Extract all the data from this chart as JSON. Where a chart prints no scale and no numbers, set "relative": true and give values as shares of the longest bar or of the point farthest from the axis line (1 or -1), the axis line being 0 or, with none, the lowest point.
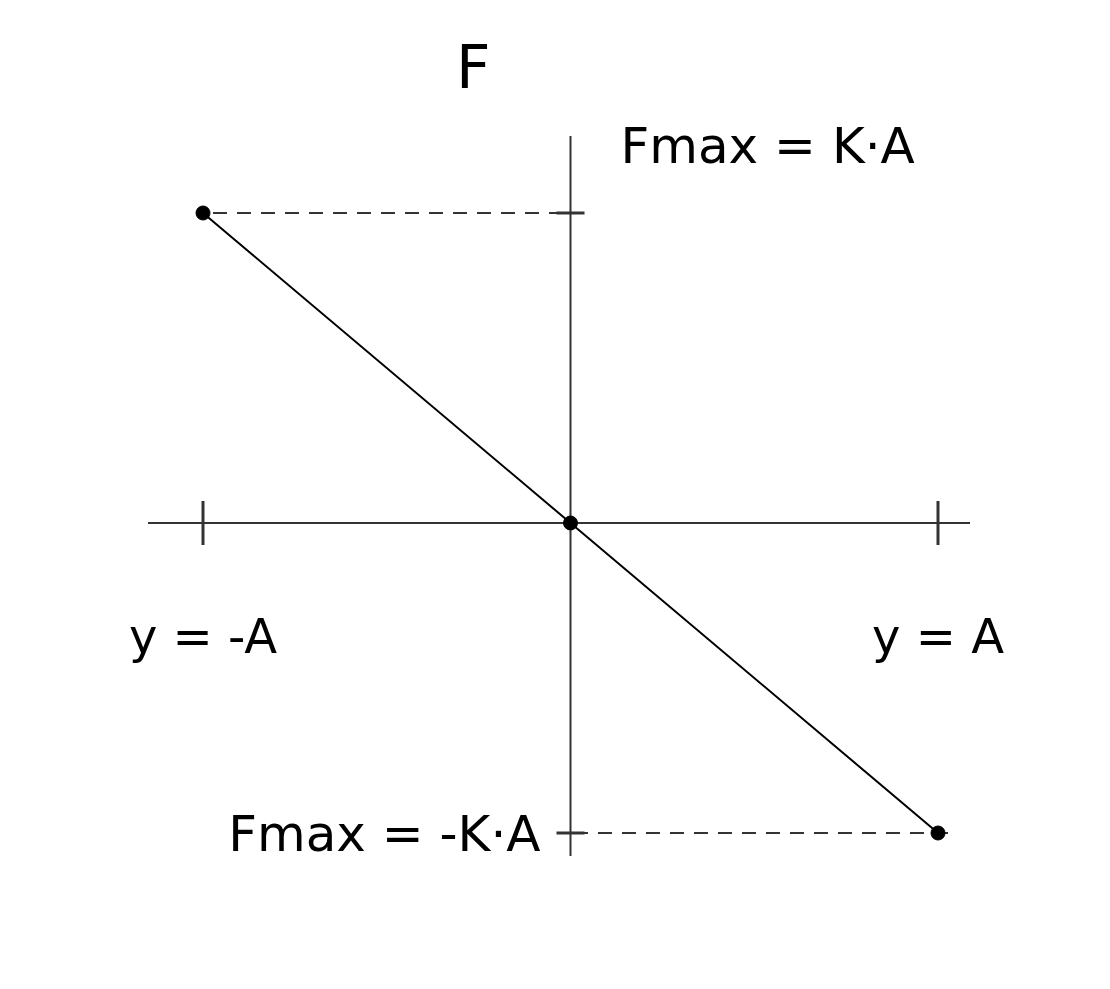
{
  "chart_data": {
    "type": "line",
    "categories": [
      "y = -A",
      null,
      "y = A"
    ],
    "values": [
      1,
      0,
      -1
    ],
    "relative": true,
    "color": "#000000",
    "marker": "circle",
    "annotations": [
      "F",
      "Fmax = K·A",
      "Fmax = -K·A"
    ]
  }
}
